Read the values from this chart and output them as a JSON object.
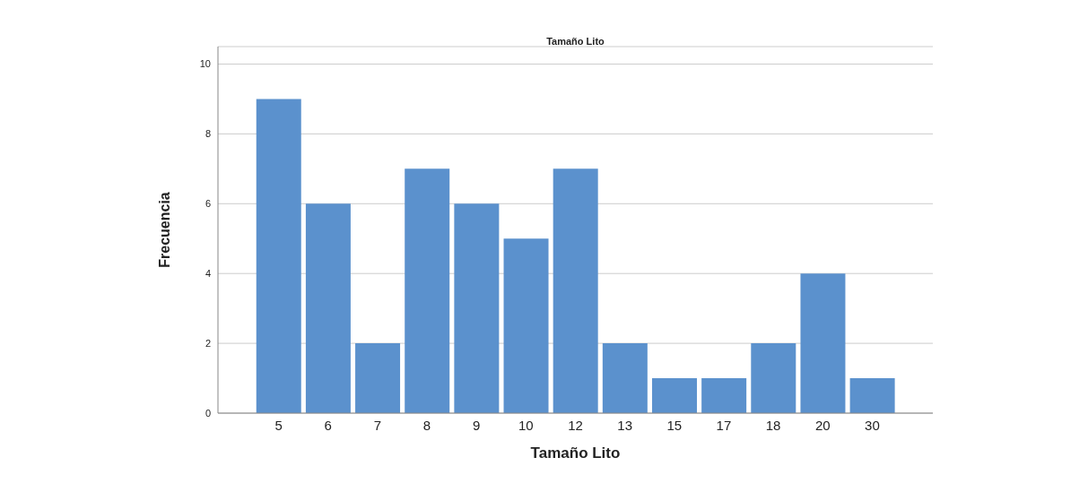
{
  "chart_data": {
    "type": "bar",
    "title": "Tamaño Lito",
    "xlabel": "Tamaño Lito",
    "ylabel": "Frecuencia",
    "categories": [
      "5",
      "6",
      "7",
      "8",
      "9",
      "10",
      "12",
      "13",
      "15",
      "17",
      "18",
      "20",
      "30"
    ],
    "values": [
      9,
      6,
      2,
      7,
      6,
      5,
      7,
      2,
      1,
      1,
      2,
      4,
      1
    ],
    "color": "#5b91cd",
    "ylim": [
      0,
      10.5
    ],
    "yticks": [
      0,
      2,
      4,
      6,
      8,
      10
    ],
    "grid": "y"
  }
}
